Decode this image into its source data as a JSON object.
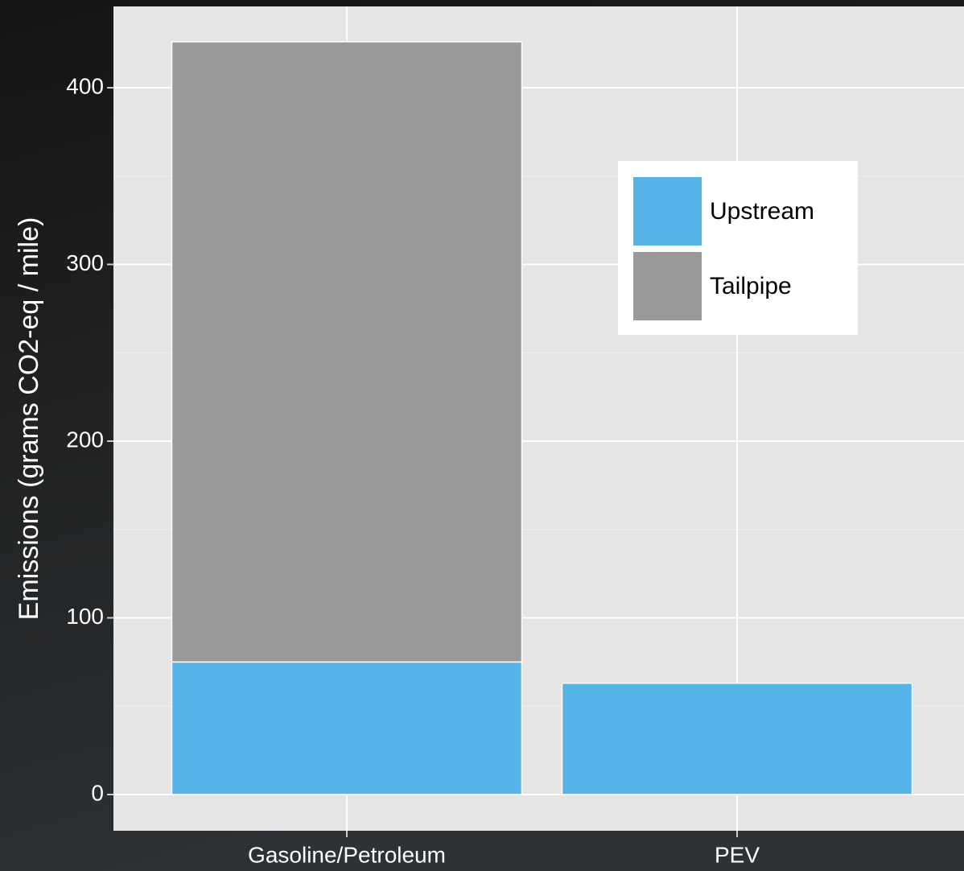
{
  "chart_data": {
    "type": "stacked_bar",
    "y_label": "Emissions (grams CO2-eq / mile)",
    "categories": [
      "Gasoline/Petroleum",
      "PEV"
    ],
    "series": [
      {
        "name": "Upstream",
        "color": "#56b4e9",
        "values": [
          75,
          63
        ]
      },
      {
        "name": "Tailpipe",
        "color": "#999999",
        "values": [
          351,
          0
        ]
      }
    ],
    "ylim": [
      -20.5,
      446
    ],
    "yticks": [
      0,
      100,
      200,
      300,
      400
    ],
    "y_minor_ticks": [
      50,
      150,
      250,
      350
    ],
    "grid": true,
    "legend_position": "top-right"
  }
}
